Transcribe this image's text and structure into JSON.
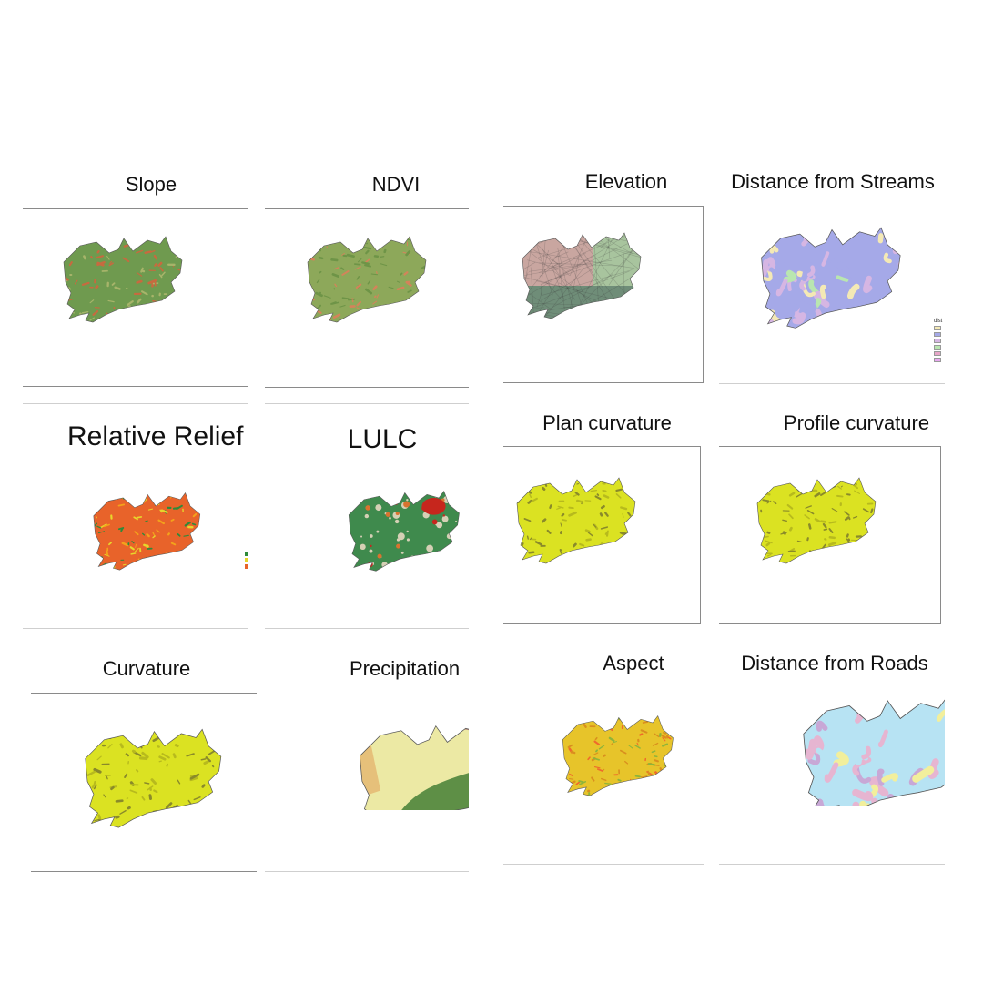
{
  "panels": {
    "slope": {
      "title": "Slope"
    },
    "ndvi": {
      "title": "NDVI"
    },
    "elevation": {
      "title": "Elevation"
    },
    "distance_streams": {
      "title": "Distance from Streams",
      "legend_title": "dist"
    },
    "relative_relief": {
      "title": "Relative Relief"
    },
    "lulc": {
      "title": "LULC"
    },
    "plan_curvature": {
      "title": "Plan curvature"
    },
    "profile_curvature": {
      "title": "Profile curvature"
    },
    "curvature": {
      "title": "Curvature"
    },
    "precipitation": {
      "title": "Precipitation"
    },
    "aspect": {
      "title": "Aspect"
    },
    "distance_roads": {
      "title": "Distance from Roads"
    }
  },
  "colors": {
    "slope": [
      "#6f9a4f",
      "#a7b46a",
      "#c76a3f"
    ],
    "ndvi": [
      "#8da85a",
      "#d4835a",
      "#6e9447"
    ],
    "elevation": [
      "#c9a6a0",
      "#a8c49e",
      "#6f8d78"
    ],
    "distance_streams": [
      "#a5a9e8",
      "#d6b6e3",
      "#b9e6b0",
      "#f4e9b5"
    ],
    "relative_relief": [
      "#e8632a",
      "#f3a21b",
      "#2e8a3a",
      "#e7d62b"
    ],
    "lulc": [
      "#3f8a4d",
      "#d5d0b5",
      "#c6261d",
      "#d9732f"
    ],
    "curvature": [
      "#dbe222",
      "#b7ba1d",
      "#8a8a2a"
    ],
    "precipitation": [
      "#5e8f46",
      "#ece9a4",
      "#e6c07a",
      "#b98f82",
      "#fbf2f7"
    ],
    "aspect": [
      "#e7c42a",
      "#d98f1e",
      "#8db43a",
      "#ef6a2c"
    ],
    "distance_roads": [
      "#b7e3f3",
      "#e6b5d1",
      "#f2ef9c",
      "#c8a8d6"
    ]
  }
}
